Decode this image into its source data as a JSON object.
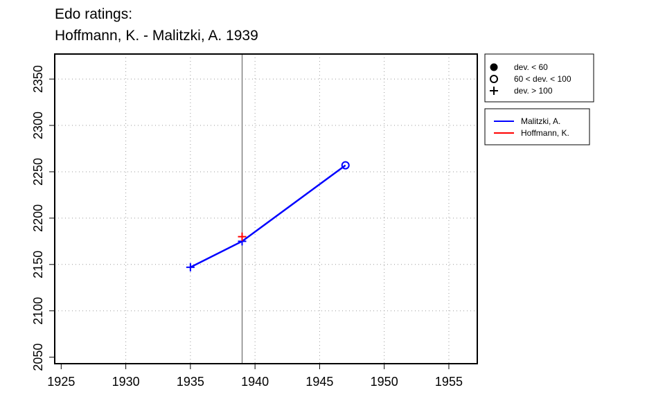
{
  "title": [
    "Edo ratings:",
    "Hoffmann, K. - Malitzki, A. 1939"
  ],
  "chart_data": {
    "type": "line",
    "xlim": [
      1924.5,
      1957.2
    ],
    "ylim": [
      2043,
      2377
    ],
    "x_ticks": [
      1925,
      1930,
      1935,
      1940,
      1945,
      1950,
      1955
    ],
    "y_ticks": [
      2050,
      2100,
      2150,
      2200,
      2250,
      2300,
      2350
    ],
    "grid": true,
    "event_line_x": 1939,
    "series": [
      {
        "name": "Malitzki, A.",
        "color": "#0000ff",
        "points": [
          {
            "x": 1935,
            "y": 2147,
            "marker": "plus"
          },
          {
            "x": 1939,
            "y": 2175,
            "marker": "plus"
          },
          {
            "x": 1947,
            "y": 2257,
            "marker": "open-circle"
          }
        ]
      },
      {
        "name": "Hoffmann, K.",
        "color": "#ff0000",
        "points": [
          {
            "x": 1939,
            "y": 2180,
            "marker": "plus"
          }
        ]
      }
    ],
    "marker_legend": [
      {
        "label": "dev. < 60",
        "marker": "filled-circle"
      },
      {
        "label": "60 < dev. < 100",
        "marker": "open-circle"
      },
      {
        "label": "dev. > 100",
        "marker": "plus"
      }
    ],
    "series_legend_placement": "right"
  }
}
